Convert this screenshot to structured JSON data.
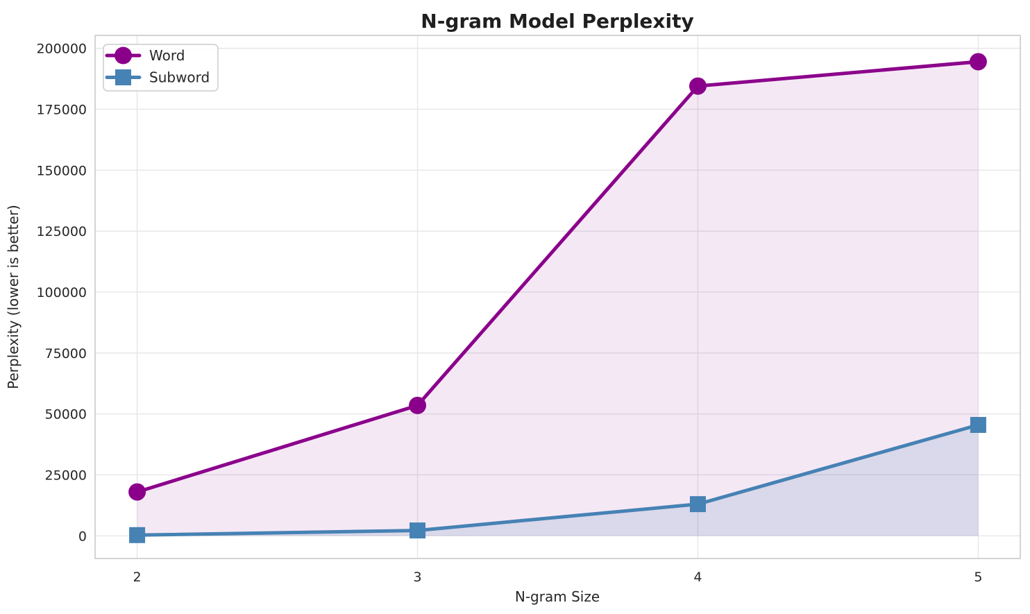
{
  "chart_data": {
    "type": "line",
    "title": "N-gram Model Perplexity",
    "xlabel": "N-gram Size",
    "ylabel": "Perplexity (lower is better)",
    "x": [
      2,
      3,
      4,
      5
    ],
    "series": [
      {
        "name": "Word",
        "color": "#8B008B",
        "marker": "circle",
        "values": [
          18000,
          53500,
          184500,
          194500
        ],
        "fill_opacity": 0.09
      },
      {
        "name": "Subword",
        "color": "#4682B4",
        "marker": "square",
        "values": [
          300,
          2200,
          13000,
          45500
        ],
        "fill_opacity": 0.15
      }
    ],
    "xticks": [
      2,
      3,
      4,
      5
    ],
    "yticks": [
      0,
      25000,
      50000,
      75000,
      100000,
      125000,
      150000,
      175000,
      200000
    ],
    "xlim": [
      1.85,
      5.15
    ],
    "ylim": [
      -9300,
      205300
    ],
    "grid": true,
    "fill_to_zero": true,
    "legend_position": "upper left",
    "text_color": "#262626",
    "grid_color": "#e6e6e6",
    "spine_color": "#c9c9c9"
  }
}
